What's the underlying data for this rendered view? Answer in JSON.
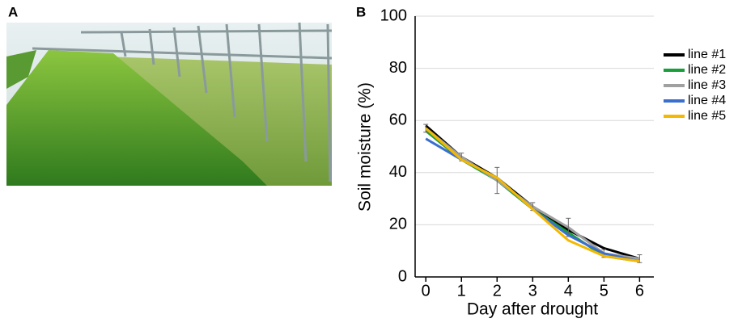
{
  "panel_labels": [
    "A",
    "B"
  ],
  "chart_data": {
    "type": "line",
    "ylabel": "Soil moisture (%)",
    "xlabel": "Day after drought",
    "x": [
      0,
      1,
      2,
      3,
      4,
      5,
      6
    ],
    "xlim": [
      -0.3,
      6.4
    ],
    "xticks": [
      0,
      1,
      2,
      3,
      4,
      5,
      6
    ],
    "ylim": [
      0,
      100
    ],
    "yticks": [
      0,
      20,
      40,
      60,
      80,
      100
    ],
    "grid": true,
    "legend": "right",
    "series": [
      {
        "name": "line #1",
        "color": "#000000",
        "values": [
          58,
          46,
          38,
          27,
          18,
          11,
          7
        ]
      },
      {
        "name": "line #2",
        "color": "#1a9e3c",
        "values": [
          56,
          45,
          37,
          26,
          17,
          8,
          6
        ]
      },
      {
        "name": "line #3",
        "color": "#a0a0a0",
        "values": [
          57,
          46,
          37,
          27,
          19,
          9,
          7
        ],
        "errors": [
          1.5,
          1.5,
          5,
          1.5,
          3.5,
          1.5,
          1.5
        ]
      },
      {
        "name": "line #4",
        "color": "#3a6fd0",
        "values": [
          53,
          45,
          38,
          26,
          16,
          9,
          6
        ]
      },
      {
        "name": "line #5",
        "color": "#f5b800",
        "values": [
          57,
          45,
          38,
          26,
          14,
          8,
          6
        ]
      }
    ]
  }
}
